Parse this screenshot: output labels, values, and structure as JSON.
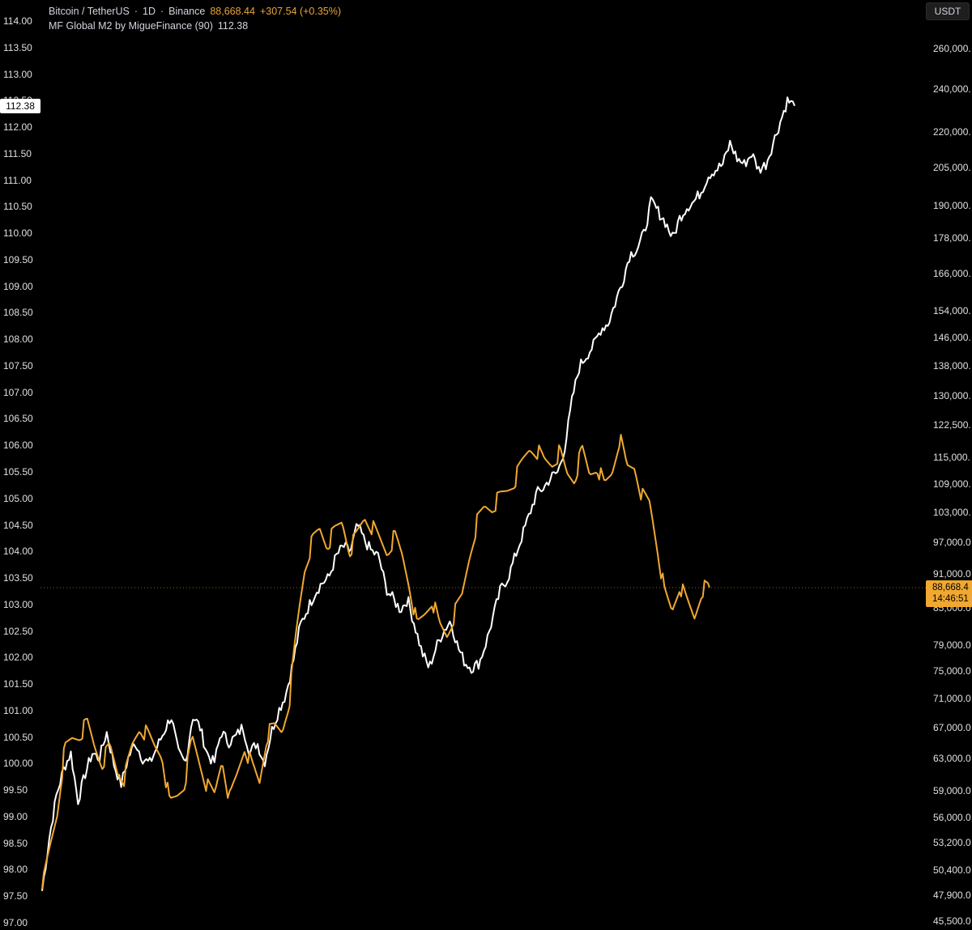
{
  "header": {
    "symbol": "Bitcoin / TetherUS",
    "interval": "1D",
    "exchange": "Binance",
    "last_price": "88,668.44",
    "change": "+307.54 (+0.35%)",
    "indicator_label": "MF Global M2 by MigueFinance (90)",
    "indicator_value": "112.38"
  },
  "right_axis_unit": "USDT",
  "badges": {
    "m2_value": "112.38",
    "btc_price": "88,668.4",
    "countdown": "14:46:51"
  },
  "colors": {
    "background": "#000000",
    "btc_line": "#f0a830",
    "m2_line": "#ffffff",
    "text": "#e0e0e0"
  },
  "chart_data": {
    "type": "line",
    "left_axis": {
      "series": "MF Global M2 by MigueFinance (90)",
      "range": [
        97.0,
        114.0
      ],
      "ticks": [
        "114.00",
        "113.50",
        "113.00",
        "112.50",
        "112.00",
        "111.50",
        "111.00",
        "110.50",
        "110.00",
        "109.50",
        "109.00",
        "108.50",
        "108.00",
        "107.50",
        "107.00",
        "106.50",
        "106.00",
        "105.50",
        "105.00",
        "104.50",
        "104.00",
        "103.50",
        "103.00",
        "102.50",
        "102.00",
        "101.50",
        "101.00",
        "100.50",
        "100.00",
        "99.50",
        "99.00",
        "98.50",
        "98.00",
        "97.50",
        "97.00"
      ]
    },
    "right_axis": {
      "series": "Bitcoin / TetherUS",
      "scale": "log",
      "unit": "USDT",
      "ticks": [
        "260,000.",
        "240,000.",
        "220,000.",
        "205,000.",
        "190,000.",
        "178,000.",
        "166,000.",
        "154,000.",
        "146,000.",
        "138,000.",
        "130,000.",
        "122,500.",
        "115,000.",
        "109,000.",
        "103,000.",
        "97,000.0",
        "91,000.0",
        "85,000.0",
        "79,000.0",
        "75,000.0",
        "71,000.0",
        "67,000.0",
        "63,000.0",
        "59,000.0",
        "56,000.0",
        "53,200.0",
        "50,400.0",
        "47,900.0",
        "45,500.0"
      ],
      "tick_values": [
        260000,
        240000,
        220000,
        205000,
        190000,
        178000,
        166000,
        154000,
        146000,
        138000,
        130000,
        122500,
        115000,
        109000,
        103000,
        97000,
        91000,
        85000,
        79000,
        75000,
        71000,
        67000,
        63000,
        59000,
        56000,
        53200,
        50400,
        47900,
        45500
      ]
    },
    "grid": false,
    "series": [
      {
        "name": "MF Global M2 by MigueFinance (90)",
        "axis": "left",
        "color": "#ffffff",
        "values": [
          97.6,
          98.6,
          99.4,
          99.9,
          100.2,
          99.3,
          99.8,
          100.2,
          100.1,
          100.6,
          100.0,
          99.6,
          100.1,
          100.4,
          100.1,
          100.0,
          100.3,
          100.6,
          100.9,
          100.2,
          100.0,
          100.9,
          100.7,
          100.2,
          100.0,
          100.6,
          100.4,
          100.5,
          100.7,
          100.2,
          100.4,
          100.0,
          100.6,
          101.0,
          101.3,
          101.9,
          102.6,
          102.9,
          103.2,
          103.4,
          103.5,
          103.9,
          104.1,
          104.0,
          104.5,
          104.2,
          104.0,
          103.9,
          103.3,
          103.1,
          102.9,
          103.1,
          102.6,
          102.1,
          101.8,
          102.2,
          102.5,
          102.7,
          102.2,
          101.9,
          101.8,
          101.9,
          102.3,
          102.8,
          103.3,
          103.5,
          103.9,
          104.3,
          104.7,
          105.1,
          105.2,
          105.4,
          105.5,
          106.0,
          106.9,
          107.5,
          107.7,
          107.9,
          108.2,
          108.3,
          108.7,
          109.1,
          109.6,
          109.7,
          110.0,
          110.6,
          110.4,
          110.2,
          109.9,
          110.3,
          110.5,
          110.6,
          110.8,
          111.1,
          111.2,
          111.3,
          111.7,
          111.4,
          111.3,
          111.5,
          111.2,
          111.3,
          111.7,
          112.1,
          112.5,
          112.4
        ]
      },
      {
        "name": "Bitcoin / TetherUS",
        "axis": "right",
        "color": "#f0a830",
        "values": [
          48500,
          52500,
          56500,
          64000,
          65500,
          66000,
          67500,
          64500,
          62500,
          64500,
          61500,
          60500,
          64500,
          67000,
          66000,
          64500,
          63500,
          57500,
          58500,
          60000,
          65500,
          62500,
          59500,
          58500,
          63000,
          58000,
          61000,
          64500,
          62000,
          60000,
          66000,
          67000,
          66500,
          71000,
          82000,
          92000,
          97000,
          99500,
          96500,
          99000,
          101000,
          95500,
          98500,
          102000,
          100000,
          97500,
          95000,
          98000,
          94500,
          89000,
          82000,
          84000,
          86500,
          82000,
          80500,
          84000,
          87000,
          94500,
          101000,
          104000,
          104000,
          106000,
          107500,
          109500,
          113500,
          117000,
          116500,
          114000,
          113500,
          116000,
          111000,
          110000,
          116500,
          111000,
          113000,
          108500,
          111500,
          119500,
          112500,
          113000,
          106500,
          105000,
          96500,
          87500,
          84500,
          89000,
          86000,
          83500,
          88500,
          88600
        ]
      }
    ]
  }
}
